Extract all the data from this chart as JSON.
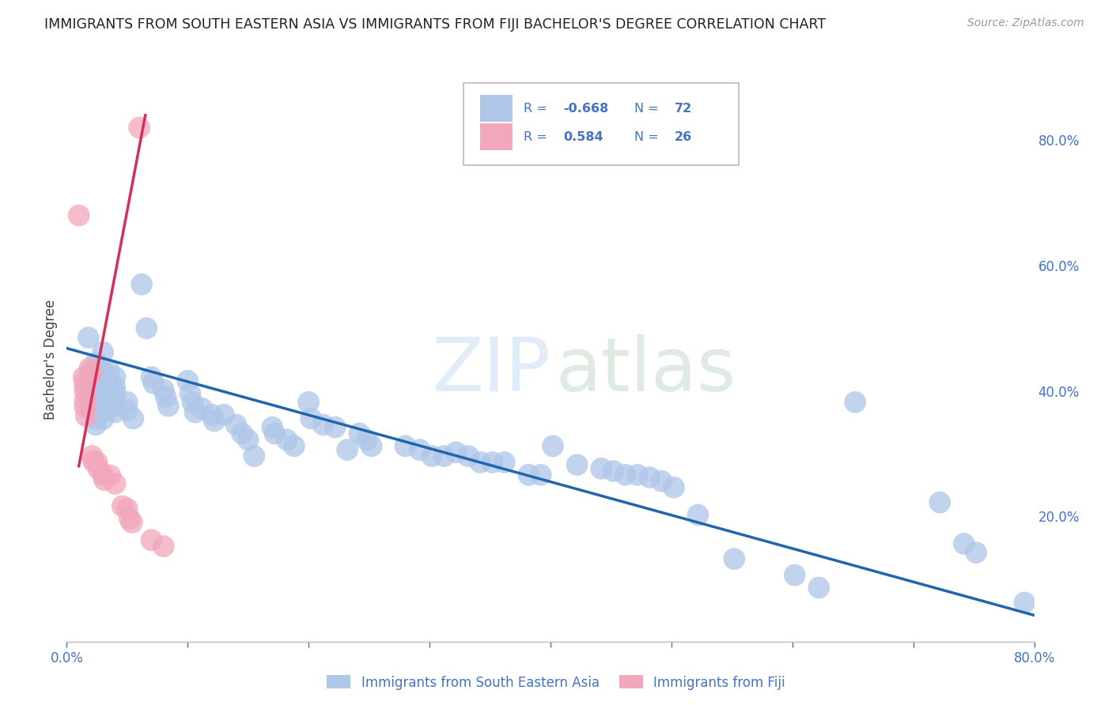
{
  "title": "IMMIGRANTS FROM SOUTH EASTERN ASIA VS IMMIGRANTS FROM FIJI BACHELOR'S DEGREE CORRELATION CHART",
  "source": "Source: ZipAtlas.com",
  "ylabel": "Bachelor's Degree",
  "xlim": [
    0.0,
    0.8
  ],
  "ylim": [
    0.0,
    0.9
  ],
  "blue_color": "#aec6e8",
  "pink_color": "#f2a7bb",
  "blue_line_color": "#2166ac",
  "pink_line_color": "#d6305a",
  "blue_scatter": [
    [
      0.018,
      0.485
    ],
    [
      0.02,
      0.43
    ],
    [
      0.02,
      0.42
    ],
    [
      0.02,
      0.4
    ],
    [
      0.02,
      0.39
    ],
    [
      0.02,
      0.38
    ],
    [
      0.02,
      0.37
    ],
    [
      0.024,
      0.445
    ],
    [
      0.024,
      0.41
    ],
    [
      0.024,
      0.4
    ],
    [
      0.024,
      0.385
    ],
    [
      0.024,
      0.372
    ],
    [
      0.024,
      0.356
    ],
    [
      0.024,
      0.346
    ],
    [
      0.03,
      0.462
    ],
    [
      0.03,
      0.432
    ],
    [
      0.03,
      0.425
    ],
    [
      0.03,
      0.415
    ],
    [
      0.03,
      0.4
    ],
    [
      0.03,
      0.39
    ],
    [
      0.03,
      0.375
    ],
    [
      0.03,
      0.366
    ],
    [
      0.03,
      0.355
    ],
    [
      0.035,
      0.432
    ],
    [
      0.035,
      0.412
    ],
    [
      0.035,
      0.396
    ],
    [
      0.035,
      0.382
    ],
    [
      0.035,
      0.37
    ],
    [
      0.04,
      0.422
    ],
    [
      0.04,
      0.406
    ],
    [
      0.04,
      0.396
    ],
    [
      0.04,
      0.382
    ],
    [
      0.04,
      0.366
    ],
    [
      0.05,
      0.382
    ],
    [
      0.05,
      0.37
    ],
    [
      0.055,
      0.356
    ],
    [
      0.062,
      0.57
    ],
    [
      0.066,
      0.5
    ],
    [
      0.07,
      0.422
    ],
    [
      0.072,
      0.412
    ],
    [
      0.08,
      0.402
    ],
    [
      0.082,
      0.39
    ],
    [
      0.084,
      0.376
    ],
    [
      0.1,
      0.416
    ],
    [
      0.102,
      0.396
    ],
    [
      0.104,
      0.382
    ],
    [
      0.106,
      0.366
    ],
    [
      0.112,
      0.372
    ],
    [
      0.12,
      0.362
    ],
    [
      0.122,
      0.352
    ],
    [
      0.13,
      0.362
    ],
    [
      0.14,
      0.346
    ],
    [
      0.145,
      0.332
    ],
    [
      0.15,
      0.322
    ],
    [
      0.155,
      0.296
    ],
    [
      0.17,
      0.342
    ],
    [
      0.172,
      0.332
    ],
    [
      0.182,
      0.322
    ],
    [
      0.188,
      0.312
    ],
    [
      0.2,
      0.382
    ],
    [
      0.202,
      0.356
    ],
    [
      0.212,
      0.346
    ],
    [
      0.222,
      0.342
    ],
    [
      0.232,
      0.306
    ],
    [
      0.242,
      0.332
    ],
    [
      0.248,
      0.322
    ],
    [
      0.252,
      0.312
    ],
    [
      0.28,
      0.312
    ],
    [
      0.292,
      0.306
    ],
    [
      0.302,
      0.296
    ],
    [
      0.312,
      0.296
    ],
    [
      0.322,
      0.302
    ],
    [
      0.332,
      0.296
    ],
    [
      0.342,
      0.286
    ],
    [
      0.352,
      0.286
    ],
    [
      0.362,
      0.286
    ],
    [
      0.382,
      0.266
    ],
    [
      0.392,
      0.266
    ],
    [
      0.402,
      0.312
    ],
    [
      0.422,
      0.282
    ],
    [
      0.442,
      0.276
    ],
    [
      0.452,
      0.272
    ],
    [
      0.462,
      0.266
    ],
    [
      0.472,
      0.266
    ],
    [
      0.482,
      0.262
    ],
    [
      0.492,
      0.256
    ],
    [
      0.502,
      0.246
    ],
    [
      0.522,
      0.202
    ],
    [
      0.552,
      0.132
    ],
    [
      0.602,
      0.106
    ],
    [
      0.622,
      0.086
    ],
    [
      0.652,
      0.382
    ],
    [
      0.722,
      0.222
    ],
    [
      0.742,
      0.156
    ],
    [
      0.752,
      0.142
    ],
    [
      0.792,
      0.062
    ]
  ],
  "pink_scatter": [
    [
      0.01,
      0.68
    ],
    [
      0.014,
      0.422
    ],
    [
      0.015,
      0.415
    ],
    [
      0.015,
      0.408
    ],
    [
      0.015,
      0.4
    ],
    [
      0.015,
      0.385
    ],
    [
      0.015,
      0.374
    ],
    [
      0.016,
      0.36
    ],
    [
      0.019,
      0.436
    ],
    [
      0.02,
      0.43
    ],
    [
      0.02,
      0.425
    ],
    [
      0.021,
      0.296
    ],
    [
      0.022,
      0.288
    ],
    [
      0.025,
      0.286
    ],
    [
      0.026,
      0.276
    ],
    [
      0.03,
      0.266
    ],
    [
      0.031,
      0.258
    ],
    [
      0.036,
      0.265
    ],
    [
      0.04,
      0.252
    ],
    [
      0.046,
      0.216
    ],
    [
      0.05,
      0.212
    ],
    [
      0.052,
      0.196
    ],
    [
      0.054,
      0.19
    ],
    [
      0.06,
      0.82
    ],
    [
      0.07,
      0.162
    ],
    [
      0.08,
      0.152
    ]
  ],
  "blue_line_x": [
    0.0,
    0.8
  ],
  "blue_line_y": [
    0.468,
    0.042
  ],
  "pink_line_x": [
    0.01,
    0.065
  ],
  "pink_line_y": [
    0.28,
    0.84
  ]
}
